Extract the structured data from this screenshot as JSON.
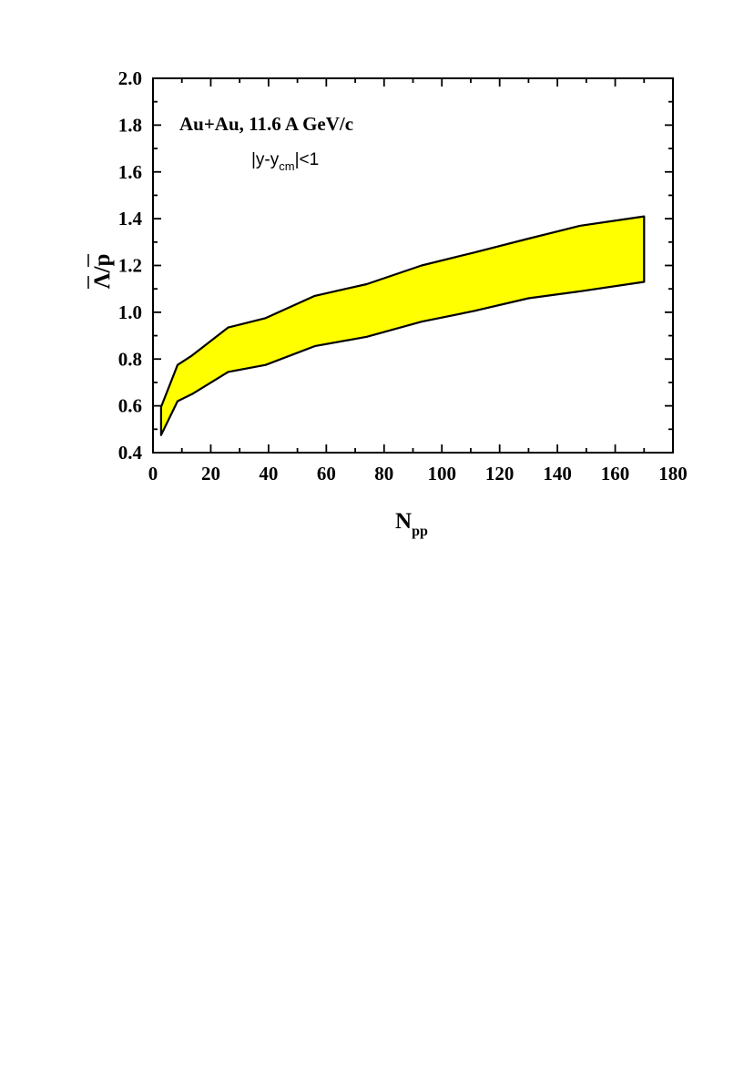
{
  "chart_data": {
    "type": "area",
    "xlabel": "N",
    "xlabel_sub": "pp",
    "ylabel": "Λ/p",
    "xlim": [
      0,
      180
    ],
    "ylim": [
      0.4,
      2.0
    ],
    "x_ticks": [
      "0",
      "20",
      "40",
      "60",
      "80",
      "100",
      "120",
      "140",
      "160",
      "180"
    ],
    "y_ticks": [
      "0.4",
      "0.6",
      "0.8",
      "1.0",
      "1.2",
      "1.4",
      "1.6",
      "1.8",
      "2.0"
    ],
    "grid": false,
    "fill_color": "#ffff00",
    "annotations": {
      "system": "Au+Au,  11.6 A GeV/c",
      "rapidity_prefix": "|y-y",
      "rapidity_sub": "cm",
      "rapidity_suffix": "|<1"
    },
    "band": {
      "upper": {
        "x": [
          2.8,
          8.5,
          13.5,
          26,
          39,
          56,
          74,
          93,
          111,
          130,
          148,
          170
        ],
        "y": [
          0.595,
          0.775,
          0.815,
          0.935,
          0.975,
          1.07,
          1.12,
          1.2,
          1.255,
          1.315,
          1.37,
          1.41
        ]
      },
      "lower": {
        "x": [
          2.8,
          8.5,
          13.5,
          26,
          39,
          56,
          74,
          93,
          111,
          130,
          148,
          170
        ],
        "y": [
          0.475,
          0.62,
          0.65,
          0.745,
          0.775,
          0.855,
          0.895,
          0.96,
          1.005,
          1.06,
          1.09,
          1.13
        ]
      }
    }
  }
}
